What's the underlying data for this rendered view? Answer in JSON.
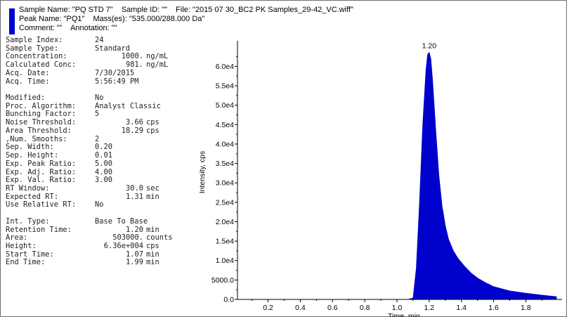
{
  "header": {
    "sample_name": "Sample Name: \"PQ STD 7\"",
    "sample_id": "Sample ID: \"\"",
    "file": "File: \"2015 07 30_BC2 PK Samples_29-42_VC.wiff\"",
    "peak_name": "Peak Name: \"PQ1\"",
    "masses": "Mass(es): \"535.000/288.000 Da\"",
    "comment": "Comment: \"\"",
    "annotation": "Annotation: \"\""
  },
  "colors": {
    "trace": "#0000cc",
    "frame": "#6e6e6e"
  },
  "params": [
    {
      "label": "Sample Index:",
      "value": "24",
      "unit": ""
    },
    {
      "label": "Sample Type:",
      "value": "Standard",
      "unit": ""
    },
    {
      "label": "Concentration:",
      "value": "1000.",
      "unit": "ng/mL"
    },
    {
      "label": "Calculated Conc:",
      "value": "981.",
      "unit": "ng/mL"
    },
    {
      "label": "Acq. Date:",
      "value": "7/30/2015",
      "unit": ""
    },
    {
      "label": "Acq. Time:",
      "value": "5:56:49 PM",
      "unit": ""
    },
    {
      "gap": true
    },
    {
      "label": "Modified:",
      "value": "No",
      "unit": ""
    },
    {
      "label": "Proc. Algorithm:",
      "value": "Analyst Classic",
      "unit": ""
    },
    {
      "label": "Bunching Factor:",
      "value": "5",
      "unit": ""
    },
    {
      "label": "Noise Threshold:",
      "value": "3.66",
      "unit": "cps"
    },
    {
      "label": "Area Threshold:",
      "value": "18.29",
      "unit": "cps"
    },
    {
      "label": ",Num. Smooths:",
      "value": "2",
      "unit": ""
    },
    {
      "label": "Sep. Width:",
      "value": "0.20",
      "unit": ""
    },
    {
      "label": "Sep. Height:",
      "value": "0.01",
      "unit": ""
    },
    {
      "label": "Exp. Peak Ratio:",
      "value": "5.00",
      "unit": ""
    },
    {
      "label": "Exp. Adj. Ratio:",
      "value": "4.00",
      "unit": ""
    },
    {
      "label": "Exp. Val. Ratio:",
      "value": "3.00",
      "unit": ""
    },
    {
      "label": "RT Window:",
      "value": "30.0",
      "unit": "sec"
    },
    {
      "label": "Expected RT:",
      "value": "1.31",
      "unit": "min"
    },
    {
      "label": "Use Relative RT:",
      "value": "No",
      "unit": ""
    },
    {
      "gap": true
    },
    {
      "label": "Int. Type:",
      "value": "Base To Base",
      "unit": ""
    },
    {
      "label": "Retention Time:",
      "value": "1.20",
      "unit": "min"
    },
    {
      "label": "Area:",
      "value": "503000.",
      "unit": "counts"
    },
    {
      "label": "Height:",
      "value": "6.36e+004",
      "unit": "cps"
    },
    {
      "label": "Start Time:",
      "value": "1.07",
      "unit": "min"
    },
    {
      "label": "End Time:",
      "value": "1.99",
      "unit": "min"
    }
  ],
  "chart_data": {
    "type": "area",
    "title": "",
    "xlabel": "Time, min",
    "ylabel": "Intensity, cps",
    "xlim": [
      0.01,
      1.99
    ],
    "ylim": [
      0,
      65500
    ],
    "x_ticks": [
      0.2,
      0.4,
      0.6,
      0.8,
      1.0,
      1.2,
      1.4,
      1.6,
      1.8
    ],
    "x_tick_labels": [
      "0.2",
      "0.4",
      "0.6",
      "0.8",
      "1.0",
      "1.2",
      "1.4",
      "1.6",
      "1.8"
    ],
    "y_ticks": [
      0,
      5000,
      10000,
      15000,
      20000,
      25000,
      30000,
      35000,
      40000,
      45000,
      50000,
      55000,
      60000
    ],
    "y_tick_labels": [
      "0.0",
      "5000.0",
      "1.0e4",
      "1.5e4",
      "2.0e4",
      "2.5e4",
      "3.0e4",
      "3.5e4",
      "4.0e4",
      "4.5e4",
      "5.0e4",
      "5.5e4",
      "6.0e4"
    ],
    "peak_label": "1.20",
    "peak_label_x": 1.2,
    "grid": false,
    "x": [
      0.01,
      1.07,
      1.1,
      1.12,
      1.14,
      1.16,
      1.18,
      1.19,
      1.2,
      1.21,
      1.22,
      1.24,
      1.26,
      1.28,
      1.3,
      1.32,
      1.35,
      1.38,
      1.42,
      1.46,
      1.5,
      1.55,
      1.6,
      1.7,
      1.8,
      1.9,
      1.99
    ],
    "values": [
      0,
      0,
      400,
      8000,
      25000,
      45000,
      59000,
      63000,
      63600,
      62000,
      57000,
      44000,
      32000,
      24000,
      19000,
      15500,
      12500,
      10500,
      8500,
      6800,
      5500,
      4300,
      3300,
      2200,
      1600,
      1100,
      700
    ]
  }
}
